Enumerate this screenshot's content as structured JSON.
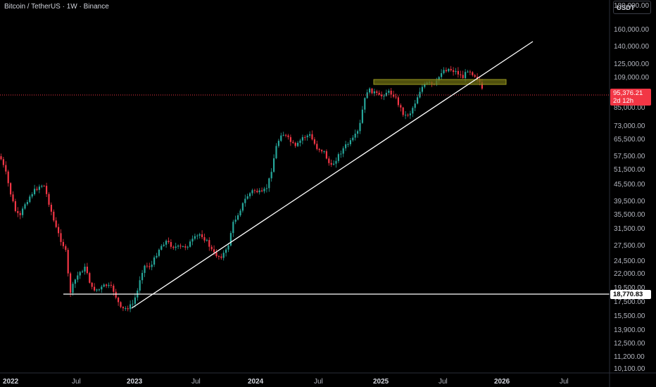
{
  "header": {
    "symbol_title": "Bitcoin / TetherUS · 1W · Binance",
    "currency": "USDT"
  },
  "colors": {
    "up": "#26a69a",
    "down": "#f23645",
    "zone": "#6b6b12",
    "line": "#ffffff",
    "background": "#000000"
  },
  "price_axis": {
    "labels": [
      "180,000.00",
      "160,000.00",
      "140,000.00",
      "125,000.00",
      "109,000.00",
      "95,376.21",
      "85,000.00",
      "73,000.00",
      "65,500.00",
      "57,500.00",
      "51,500.00",
      "45,500.00",
      "39,500.00",
      "35,500.00",
      "31,500.00",
      "27,500.00",
      "24,500.00",
      "22,000.00",
      "19,500.00",
      "18,770.83",
      "17,500.00",
      "15,500.00",
      "13,900.00",
      "12,500.00",
      "11,200.00",
      "10,100.00"
    ]
  },
  "time_axis": {
    "labels": [
      {
        "text": "2022",
        "year": true
      },
      {
        "text": "Jul",
        "year": false
      },
      {
        "text": "2023",
        "year": true
      },
      {
        "text": "Jul",
        "year": false
      },
      {
        "text": "2024",
        "year": true
      },
      {
        "text": "Jul",
        "year": false
      },
      {
        "text": "2025",
        "year": true
      },
      {
        "text": "Jul",
        "year": false
      },
      {
        "text": "2026",
        "year": true
      },
      {
        "text": "Jul",
        "year": false
      }
    ]
  },
  "last_price": {
    "value": "95,376.21",
    "countdown": "2d 12h"
  },
  "horizontal_level": {
    "value": "18,770.83"
  }
}
